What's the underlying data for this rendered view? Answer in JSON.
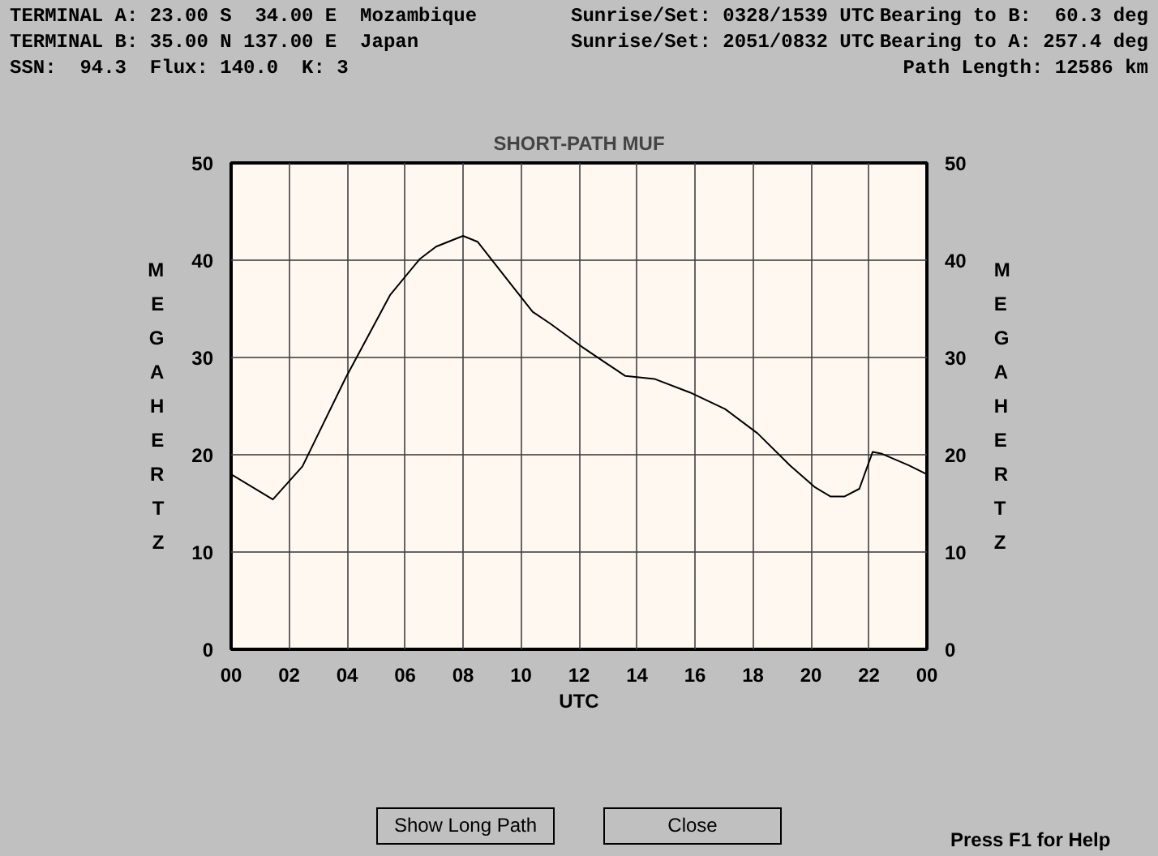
{
  "chart_data": {
    "type": "line",
    "title": "SHORT-PATH MUF",
    "xlabel": "UTC",
    "ylabel": "MEGAHERTZ",
    "y2label": "MEGAHERTZ",
    "x": [
      0,
      1.44,
      2.46,
      3.95,
      5.48,
      6.5,
      7.07,
      8.0,
      8.5,
      9.58,
      10.4,
      11.0,
      12.1,
      12.94,
      13.6,
      14.6,
      15.83,
      17.04,
      18.16,
      19.28,
      20.12,
      20.68,
      21.15,
      21.67,
      22.13,
      22.45,
      23.38,
      24
    ],
    "series": [
      {
        "color": "#000000",
        "values": [
          18.0,
          15.4,
          18.8,
          27.9,
          36.4,
          40.1,
          41.4,
          42.5,
          41.9,
          37.8,
          34.7,
          33.5,
          31.1,
          29.4,
          28.1,
          27.8,
          26.4,
          24.7,
          22.2,
          18.9,
          16.7,
          15.7,
          15.7,
          16.5,
          20.3,
          20.1,
          18.9,
          18.0
        ]
      }
    ],
    "xlim": [
      0,
      24
    ],
    "ylim": [
      0,
      50
    ],
    "xticks": [
      {
        "value": 0,
        "label": "00"
      },
      {
        "value": 2,
        "label": "02"
      },
      {
        "value": 4,
        "label": "04"
      },
      {
        "value": 6,
        "label": "06"
      },
      {
        "value": 8,
        "label": "08"
      },
      {
        "value": 10,
        "label": "10"
      },
      {
        "value": 12,
        "label": "12"
      },
      {
        "value": 14,
        "label": "14"
      },
      {
        "value": 16,
        "label": "16"
      },
      {
        "value": 18,
        "label": "18"
      },
      {
        "value": 20,
        "label": "20"
      },
      {
        "value": 22,
        "label": "22"
      },
      {
        "value": 24,
        "label": "00"
      }
    ],
    "yticks": [
      0,
      10,
      20,
      30,
      40,
      50
    ],
    "y2lim": [
      0,
      50
    ],
    "y2ticks": [
      0,
      10,
      20,
      30,
      40,
      50
    ],
    "grid": true,
    "marker": "none",
    "line_style": "solid",
    "annotations": [
      "TERMINAL A: 23.00 S  34.00 E  Mozambique",
      "Sunrise/Set: 0328/1539 UTC",
      "Bearing to B:  60.3 deg",
      "TERMINAL B: 35.00 N 137.00 E  Japan",
      "Sunrise/Set: 2051/0832 UTC",
      "Bearing to A: 257.4 deg",
      "SSN:  94.3  Flux: 140.0  K: 3",
      "Path Length: 12586 km",
      "Show Long Path",
      "Close",
      "Press F1 for Help"
    ]
  }
}
